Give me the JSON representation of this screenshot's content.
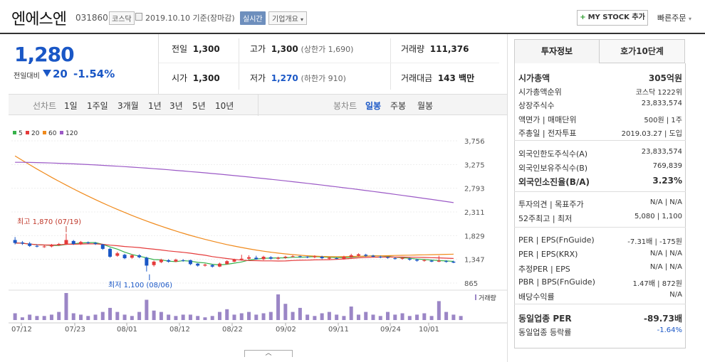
{
  "header": {
    "name": "엔에스엔",
    "code": "031860",
    "market": "코스닥",
    "date": "2019.10.10  기준(장마감)",
    "live": "실시간",
    "overview": "기업개요",
    "mystock": "MY STOCK 추가",
    "quick_order": "빠른주문"
  },
  "price": {
    "current": "1,280",
    "prev_label": "전일대비",
    "change": "20",
    "pct": "-1.54%",
    "color": "#1a57c6"
  },
  "stats": {
    "prev_close_label": "전일",
    "prev_close": "1,300",
    "high_label": "고가",
    "high": "1,300",
    "upper_limit": "(상한가 1,690)",
    "volume_label": "거래량",
    "volume": "111,376",
    "open_label": "시가",
    "open": "1,300",
    "low_label": "저가",
    "low": "1,270",
    "lower_limit": "(하한가 910)",
    "amount_label": "거래대금",
    "amount": "143 백만"
  },
  "periods": {
    "line_label": "선차트",
    "line": [
      "1일",
      "1주일",
      "3개월",
      "1년",
      "3년",
      "5년",
      "10년"
    ],
    "candle_label": "봉차트",
    "candle": [
      "일봉",
      "주봉",
      "월봉"
    ],
    "candle_active": "일봉"
  },
  "chart_data": {
    "type": "candlestick",
    "legend": [
      {
        "name": "5",
        "color": "#36b24a"
      },
      {
        "name": "20",
        "color": "#e53b3b"
      },
      {
        "name": "60",
        "color": "#f08a1c"
      },
      {
        "name": "120",
        "color": "#9b59c6"
      }
    ],
    "y_ticks": [
      "3,756",
      "3,275",
      "2,793",
      "2,311",
      "1,829",
      "1,347",
      "865"
    ],
    "ylim": [
      865,
      3756
    ],
    "x_ticks": [
      "07/12",
      "07/23",
      "08/01",
      "08/12",
      "08/22",
      "09/02",
      "09/11",
      "09/24",
      "10/01"
    ],
    "high_note": "최고 1,870 (07/19)",
    "low_note": "최저 1,100 (08/06)",
    "volume_label": "거래량",
    "candles": [
      {
        "o": 1740,
        "c": 1680,
        "h": 1800,
        "l": 1650
      },
      {
        "o": 1690,
        "c": 1670,
        "h": 1720,
        "l": 1640
      },
      {
        "o": 1670,
        "c": 1620,
        "h": 1700,
        "l": 1600
      },
      {
        "o": 1620,
        "c": 1610,
        "h": 1650,
        "l": 1590
      },
      {
        "o": 1600,
        "c": 1610,
        "h": 1640,
        "l": 1580
      },
      {
        "o": 1610,
        "c": 1640,
        "h": 1660,
        "l": 1590
      },
      {
        "o": 1640,
        "c": 1660,
        "h": 1680,
        "l": 1620
      },
      {
        "o": 1660,
        "c": 1740,
        "h": 1870,
        "l": 1640
      },
      {
        "o": 1720,
        "c": 1660,
        "h": 1740,
        "l": 1640
      },
      {
        "o": 1660,
        "c": 1700,
        "h": 1720,
        "l": 1640
      },
      {
        "o": 1690,
        "c": 1680,
        "h": 1710,
        "l": 1660
      },
      {
        "o": 1680,
        "c": 1660,
        "h": 1700,
        "l": 1640
      },
      {
        "o": 1650,
        "c": 1560,
        "h": 1660,
        "l": 1540
      },
      {
        "o": 1560,
        "c": 1400,
        "h": 1580,
        "l": 1380
      },
      {
        "o": 1420,
        "c": 1470,
        "h": 1500,
        "l": 1400
      },
      {
        "o": 1440,
        "c": 1370,
        "h": 1460,
        "l": 1350
      },
      {
        "o": 1380,
        "c": 1430,
        "h": 1450,
        "l": 1360
      },
      {
        "o": 1430,
        "c": 1390,
        "h": 1450,
        "l": 1370
      },
      {
        "o": 1380,
        "c": 1220,
        "h": 1400,
        "l": 1100
      },
      {
        "o": 1230,
        "c": 1300,
        "h": 1320,
        "l": 1200
      },
      {
        "o": 1290,
        "c": 1340,
        "h": 1360,
        "l": 1270
      },
      {
        "o": 1330,
        "c": 1300,
        "h": 1350,
        "l": 1280
      },
      {
        "o": 1300,
        "c": 1340,
        "h": 1360,
        "l": 1290
      },
      {
        "o": 1330,
        "c": 1320,
        "h": 1350,
        "l": 1300
      },
      {
        "o": 1330,
        "c": 1250,
        "h": 1340,
        "l": 1230
      },
      {
        "o": 1260,
        "c": 1220,
        "h": 1270,
        "l": 1200
      },
      {
        "o": 1220,
        "c": 1240,
        "h": 1260,
        "l": 1200
      },
      {
        "o": 1230,
        "c": 1200,
        "h": 1250,
        "l": 1180
      },
      {
        "o": 1200,
        "c": 1260,
        "h": 1280,
        "l": 1190
      },
      {
        "o": 1250,
        "c": 1310,
        "h": 1330,
        "l": 1240
      },
      {
        "o": 1300,
        "c": 1340,
        "h": 1360,
        "l": 1290
      },
      {
        "o": 1340,
        "c": 1360,
        "h": 1440,
        "l": 1320
      },
      {
        "o": 1360,
        "c": 1390,
        "h": 1430,
        "l": 1340
      },
      {
        "o": 1380,
        "c": 1350,
        "h": 1420,
        "l": 1340
      },
      {
        "o": 1350,
        "c": 1400,
        "h": 1420,
        "l": 1330
      },
      {
        "o": 1390,
        "c": 1360,
        "h": 1410,
        "l": 1340
      },
      {
        "o": 1360,
        "c": 1380,
        "h": 1400,
        "l": 1340
      },
      {
        "o": 1380,
        "c": 1400,
        "h": 1420,
        "l": 1360
      },
      {
        "o": 1400,
        "c": 1410,
        "h": 1430,
        "l": 1390
      },
      {
        "o": 1410,
        "c": 1400,
        "h": 1420,
        "l": 1380
      },
      {
        "o": 1400,
        "c": 1390,
        "h": 1410,
        "l": 1370
      },
      {
        "o": 1390,
        "c": 1410,
        "h": 1430,
        "l": 1370
      },
      {
        "o": 1400,
        "c": 1370,
        "h": 1420,
        "l": 1350
      },
      {
        "o": 1360,
        "c": 1380,
        "h": 1400,
        "l": 1340
      },
      {
        "o": 1370,
        "c": 1360,
        "h": 1390,
        "l": 1350
      },
      {
        "o": 1360,
        "c": 1400,
        "h": 1420,
        "l": 1340
      },
      {
        "o": 1390,
        "c": 1430,
        "h": 1460,
        "l": 1380
      },
      {
        "o": 1420,
        "c": 1450,
        "h": 1470,
        "l": 1400
      },
      {
        "o": 1440,
        "c": 1420,
        "h": 1460,
        "l": 1400
      },
      {
        "o": 1420,
        "c": 1400,
        "h": 1440,
        "l": 1390
      },
      {
        "o": 1400,
        "c": 1390,
        "h": 1420,
        "l": 1370
      },
      {
        "o": 1390,
        "c": 1380,
        "h": 1400,
        "l": 1360
      },
      {
        "o": 1370,
        "c": 1360,
        "h": 1390,
        "l": 1340
      },
      {
        "o": 1360,
        "c": 1370,
        "h": 1390,
        "l": 1340
      },
      {
        "o": 1360,
        "c": 1340,
        "h": 1380,
        "l": 1320
      },
      {
        "o": 1340,
        "c": 1320,
        "h": 1360,
        "l": 1300
      },
      {
        "o": 1320,
        "c": 1330,
        "h": 1350,
        "l": 1300
      },
      {
        "o": 1320,
        "c": 1300,
        "h": 1340,
        "l": 1290
      },
      {
        "o": 1300,
        "c": 1320,
        "h": 1420,
        "l": 1290
      },
      {
        "o": 1310,
        "c": 1300,
        "h": 1330,
        "l": 1280
      },
      {
        "o": 1300,
        "c": 1280,
        "h": 1320,
        "l": 1270
      }
    ],
    "volumes": [
      0.25,
      0.1,
      0.2,
      0.15,
      0.15,
      0.2,
      0.3,
      1.0,
      0.25,
      0.2,
      0.15,
      0.2,
      0.3,
      0.45,
      0.3,
      0.2,
      0.15,
      0.3,
      0.75,
      0.35,
      0.3,
      0.2,
      0.15,
      0.2,
      0.2,
      0.15,
      0.1,
      0.15,
      0.3,
      0.4,
      0.2,
      0.25,
      0.3,
      0.2,
      0.25,
      0.3,
      0.95,
      0.6,
      0.3,
      0.45,
      0.2,
      0.15,
      0.25,
      0.3,
      0.2,
      0.15,
      0.5,
      0.2,
      0.3,
      0.2,
      0.15,
      0.3,
      0.2,
      0.25,
      0.15,
      0.2,
      0.25,
      0.15,
      0.7,
      0.3,
      0.2,
      0.15
    ]
  },
  "info": {
    "tab_active": "투자정보",
    "tab_other": "호가10단계",
    "rows1": [
      {
        "k": "시가총액",
        "v": "305억원",
        "bold": true
      },
      {
        "k": "시가총액순위",
        "v": "코스닥 1222위"
      },
      {
        "k": "상장주식수",
        "v": "23,833,574"
      },
      {
        "k": "액면가 | 매매단위",
        "v": "500원 | 1주"
      },
      {
        "k": "주총일 | 전자투표",
        "v": "2019.03.27 | 도입"
      }
    ],
    "rows2": [
      {
        "k": "외국인한도주식수(A)",
        "v": "23,833,574"
      },
      {
        "k": "외국인보유주식수(B)",
        "v": "769,839"
      },
      {
        "k": "외국인소진율(B/A)",
        "v": "3.23%",
        "bold": true
      }
    ],
    "rows3": [
      {
        "k": "투자의견 | 목표주가",
        "v": "N/A | N/A"
      },
      {
        "k": "52주최고 | 최저",
        "v": "5,080 | 1,100"
      }
    ],
    "rows4": [
      {
        "k": "PER | EPS(FnGuide)",
        "v": "-7.31배 | -175원"
      },
      {
        "k": "PER | EPS(KRX)",
        "v": "N/A | N/A"
      },
      {
        "k": "추정PER | EPS",
        "v": "N/A | N/A"
      },
      {
        "k": "PBR | BPS(FnGuide)",
        "v": "1.47배 | 872원"
      },
      {
        "k": "배당수익률",
        "v": "N/A"
      }
    ],
    "rows5": [
      {
        "k": "동일업종 PER",
        "v": "-89.73배",
        "bold": true
      },
      {
        "k": "동일업종 등락률",
        "v": "-1.64%",
        "blue": true
      }
    ]
  }
}
